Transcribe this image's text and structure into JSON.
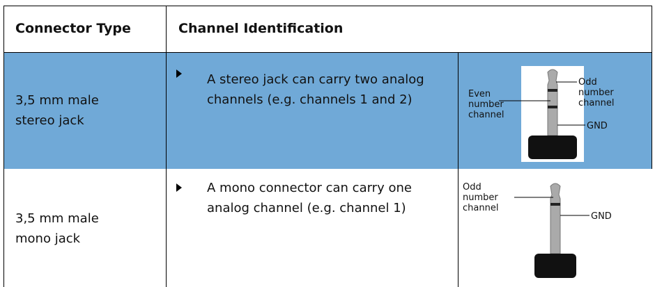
{
  "table": {
    "header": [
      "Connector Type",
      "Channel Identification"
    ],
    "rows": [
      {
        "type": "3,5 mm male stereo jack",
        "description": "A stereo jack can carry two analog channels (e.g. channels 1 and 2)",
        "labels": {
          "odd": "Odd number channel",
          "even": "Even number channel",
          "gnd": "GND"
        }
      },
      {
        "type": "3,5 mm male mono jack",
        "description": "A mono connector can carry one analog channel (e.g. channel 1)",
        "labels": {
          "odd": "Odd number channel",
          "gnd": "GND"
        }
      }
    ]
  }
}
